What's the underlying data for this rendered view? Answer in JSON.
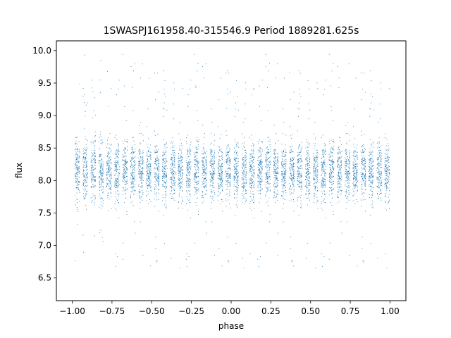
{
  "chart_data": {
    "type": "scatter",
    "title": "1SWASPJ161958.40-315546.9 Period 1889281.625s",
    "xlabel": "phase",
    "ylabel": "flux",
    "xlim": [
      -1.1,
      1.1
    ],
    "ylim": [
      6.15,
      10.15
    ],
    "xticks": [
      -1.0,
      -0.75,
      -0.5,
      -0.25,
      0.0,
      0.25,
      0.5,
      0.75,
      1.0
    ],
    "xtick_labels": [
      "−1.00",
      "−0.75",
      "−0.50",
      "−0.25",
      "0.00",
      "0.25",
      "0.50",
      "0.75",
      "1.00"
    ],
    "yticks": [
      6.5,
      7.0,
      7.5,
      8.0,
      8.5,
      9.0,
      9.5,
      10.0
    ],
    "ytick_labels": [
      "6.5",
      "7.0",
      "7.5",
      "8.0",
      "8.5",
      "9.0",
      "9.5",
      "10.0"
    ],
    "grid": false,
    "marker_color": "#1f77b4",
    "series": [
      {
        "points_summary": "dense phase-folded light curve; points cluster in narrow vertical bands spaced about 0.05 in phase, mirrored about phase 0",
        "band_phase_centers": [
          -0.97,
          -0.92,
          -0.87,
          -0.82,
          -0.77,
          -0.72,
          -0.67,
          -0.62,
          -0.57,
          -0.52,
          -0.47,
          -0.42,
          -0.37,
          -0.32,
          -0.27,
          -0.22,
          -0.17,
          -0.12,
          -0.07,
          -0.02,
          0.03,
          0.08,
          0.13,
          0.18,
          0.23,
          0.28,
          0.33,
          0.38,
          0.43,
          0.48,
          0.53,
          0.58,
          0.63,
          0.68,
          0.73,
          0.78,
          0.83,
          0.88,
          0.93,
          0.98
        ],
        "band_mean_flux": 8.15,
        "band_spread_flux": 0.22,
        "flux_min": 6.35,
        "flux_max": 10.05
      }
    ]
  }
}
